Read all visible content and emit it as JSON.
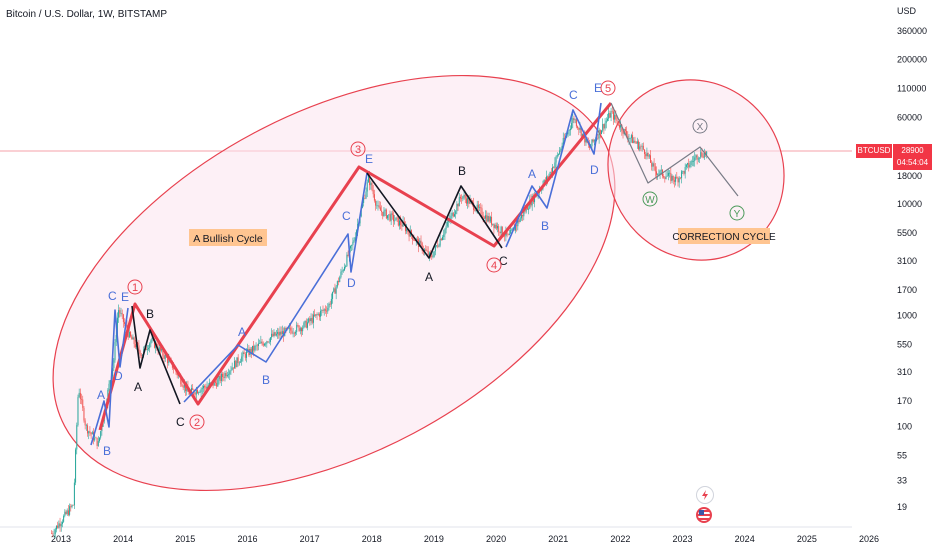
{
  "header": {
    "symbol": "Bitcoin / U.S. Dollar",
    "interval": "1W",
    "exchange": "BITSTAMP"
  },
  "price_label": {
    "ticker": "BTCUSD",
    "price": "28900",
    "countdown": "04:54:04"
  },
  "currency": "USD",
  "colors": {
    "red": "#e8414f",
    "blue": "#4a6fd8",
    "black": "#131722",
    "gray": "#787b86",
    "ellipse_fill": "#fbe4ef",
    "ellipse_stroke": "#e8414f",
    "annotation_bg": "#ffc591",
    "green_circle": "#4c9a5b"
  },
  "icons": [
    "lightning-icon",
    "us-flag-icon"
  ],
  "chart_data": {
    "type": "candlestick",
    "scale": "log",
    "x_ticks": [
      "2013",
      "2014",
      "2015",
      "2016",
      "2017",
      "2018",
      "2019",
      "2020",
      "2021",
      "2022",
      "2023",
      "2024",
      "2025",
      "2026"
    ],
    "y_ticks": [
      "360000",
      "200000",
      "110000",
      "60000",
      "18000",
      "10000",
      "5500",
      "3100",
      "1700",
      "1000",
      "550",
      "310",
      "170",
      "100",
      "55",
      "33",
      "19"
    ],
    "annotations": {
      "bullish_cycle": "A Bullish Cycle",
      "correction_cycle": "CORRECTION CYCLE"
    },
    "labels": [
      {
        "text": "A",
        "series": "blue"
      },
      {
        "text": "B",
        "series": "blue"
      },
      {
        "text": "C",
        "series": "blue"
      },
      {
        "text": "D",
        "series": "blue"
      },
      {
        "text": "E",
        "series": "blue"
      },
      {
        "text": "B",
        "series": "black"
      },
      {
        "text": "A",
        "series": "black"
      },
      {
        "text": "C",
        "series": "black"
      },
      {
        "text": "A",
        "series": "blue"
      },
      {
        "text": "B",
        "series": "blue"
      },
      {
        "text": "C",
        "series": "blue"
      },
      {
        "text": "D",
        "series": "blue"
      },
      {
        "text": "E",
        "series": "blue"
      },
      {
        "text": "B",
        "series": "black"
      },
      {
        "text": "A",
        "series": "black"
      },
      {
        "text": "C",
        "series": "black"
      },
      {
        "text": "A",
        "series": "blue"
      },
      {
        "text": "B",
        "series": "blue"
      },
      {
        "text": "C",
        "series": "blue"
      },
      {
        "text": "D",
        "series": "blue"
      },
      {
        "text": "E",
        "series": "blue"
      }
    ],
    "wave_numbers": [
      "1",
      "2",
      "3",
      "4",
      "5"
    ],
    "correction_labels": [
      "W",
      "X",
      "Y"
    ],
    "candles": {
      "start_date": "2012-11",
      "end_date": "2023-06",
      "approx_path": [
        {
          "date": "2012.85",
          "price": 11
        },
        {
          "date": "2013.2",
          "price": 20
        },
        {
          "date": "2013.28",
          "price": 230
        },
        {
          "date": "2013.4",
          "price": 100
        },
        {
          "date": "2013.6",
          "price": 70
        },
        {
          "date": "2013.85",
          "price": 400
        },
        {
          "date": "2013.92",
          "price": 1150
        },
        {
          "date": "2014.1",
          "price": 650
        },
        {
          "date": "2014.3",
          "price": 450
        },
        {
          "date": "2014.45",
          "price": 600
        },
        {
          "date": "2014.8",
          "price": 350
        },
        {
          "date": "2015.05",
          "price": 200
        },
        {
          "date": "2015.5",
          "price": 250
        },
        {
          "date": "2015.9",
          "price": 420
        },
        {
          "date": "2016.4",
          "price": 650
        },
        {
          "date": "2016.9",
          "price": 800
        },
        {
          "date": "2017.3",
          "price": 1200
        },
        {
          "date": "2017.7",
          "price": 4500
        },
        {
          "date": "2017.95",
          "price": 17000
        },
        {
          "date": "2018.1",
          "price": 9000
        },
        {
          "date": "2018.5",
          "price": 6500
        },
        {
          "date": "2018.95",
          "price": 3300
        },
        {
          "date": "2019.45",
          "price": 12000
        },
        {
          "date": "2019.9",
          "price": 7200
        },
        {
          "date": "2020.2",
          "price": 5000
        },
        {
          "date": "2020.5",
          "price": 9500
        },
        {
          "date": "2020.85",
          "price": 18000
        },
        {
          "date": "2021.25",
          "price": 60000
        },
        {
          "date": "2021.5",
          "price": 32000
        },
        {
          "date": "2021.85",
          "price": 66000
        },
        {
          "date": "2022.1",
          "price": 42000
        },
        {
          "date": "2022.4",
          "price": 30000
        },
        {
          "date": "2022.55",
          "price": 20000
        },
        {
          "date": "2022.9",
          "price": 16500
        },
        {
          "date": "2023.25",
          "price": 28000
        },
        {
          "date": "2023.4",
          "price": 28900
        }
      ]
    }
  }
}
